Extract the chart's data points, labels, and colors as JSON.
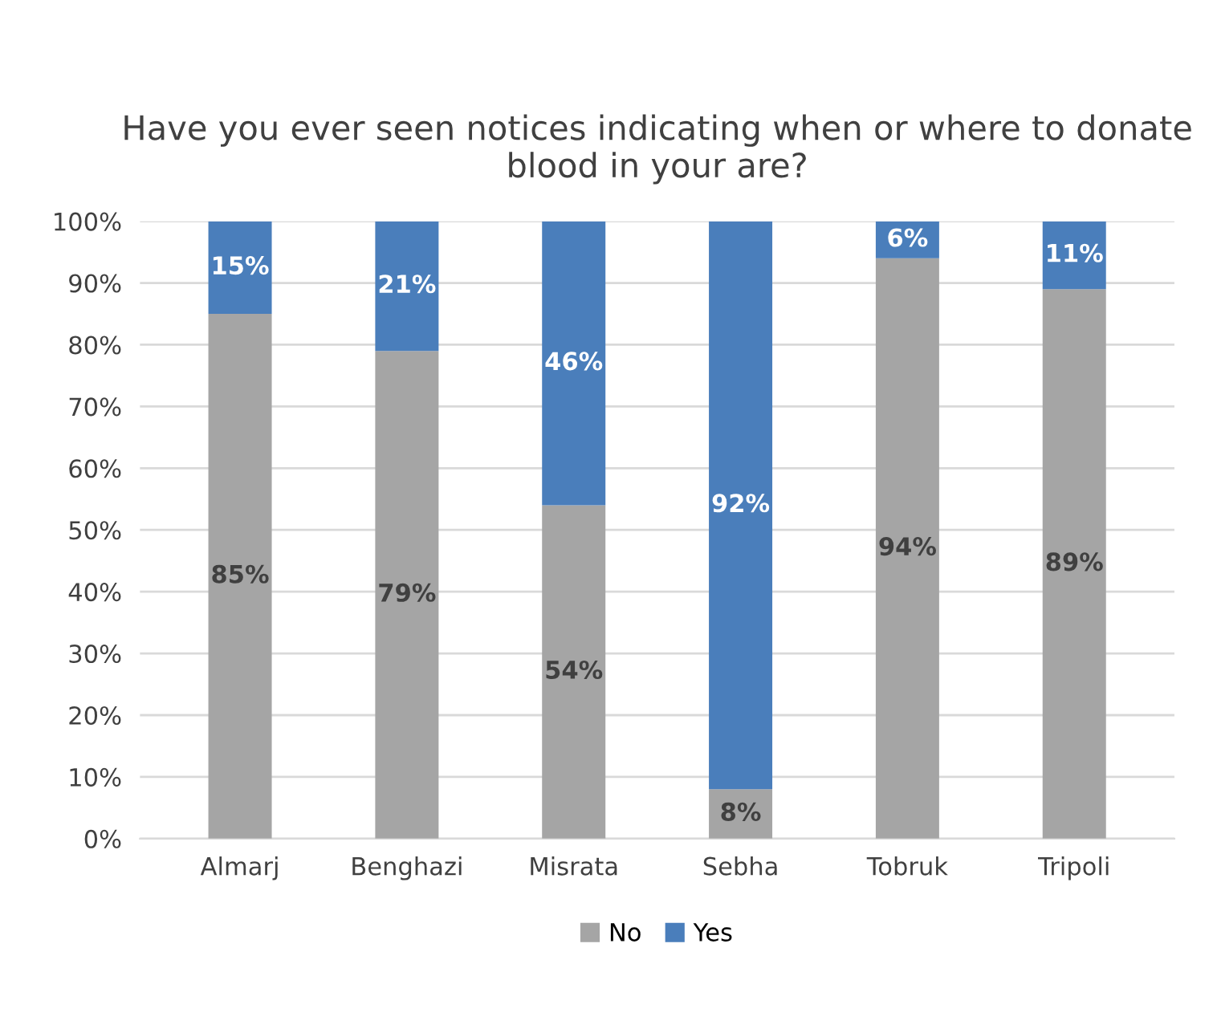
{
  "chart_data": {
    "type": "bar",
    "title": "Have you ever seen notices indicating when or where to donate blood in your are?",
    "categories": [
      "Almarj",
      "Benghazi",
      "Misrata",
      "Sebha",
      "Tobruk",
      "Tripoli"
    ],
    "stacked": true,
    "series": [
      {
        "name": "No",
        "color": "#a5a5a5",
        "values": [
          85,
          79,
          54,
          8,
          94,
          89
        ],
        "value_labels": [
          "85%",
          "79%",
          "54%",
          "8%",
          "94%",
          "89%"
        ]
      },
      {
        "name": "Yes",
        "color": "#4a7ebb",
        "values": [
          15,
          21,
          46,
          92,
          6,
          11
        ],
        "value_labels": [
          "15%",
          "21%",
          "46%",
          "92%",
          "6%",
          "11%"
        ]
      }
    ],
    "ylim": [
      0,
      100
    ],
    "yticks": [
      {
        "value": 0,
        "label": "0%"
      },
      {
        "value": 10,
        "label": "10%"
      },
      {
        "value": 20,
        "label": "20%"
      },
      {
        "value": 30,
        "label": "30%"
      },
      {
        "value": 40,
        "label": "40%"
      },
      {
        "value": 50,
        "label": "50%"
      },
      {
        "value": 60,
        "label": "60%"
      },
      {
        "value": 70,
        "label": "70%"
      },
      {
        "value": 80,
        "label": "80%"
      },
      {
        "value": 90,
        "label": "90%"
      },
      {
        "value": 100,
        "label": "100%"
      }
    ],
    "grid": "y",
    "legend": "bottom"
  }
}
